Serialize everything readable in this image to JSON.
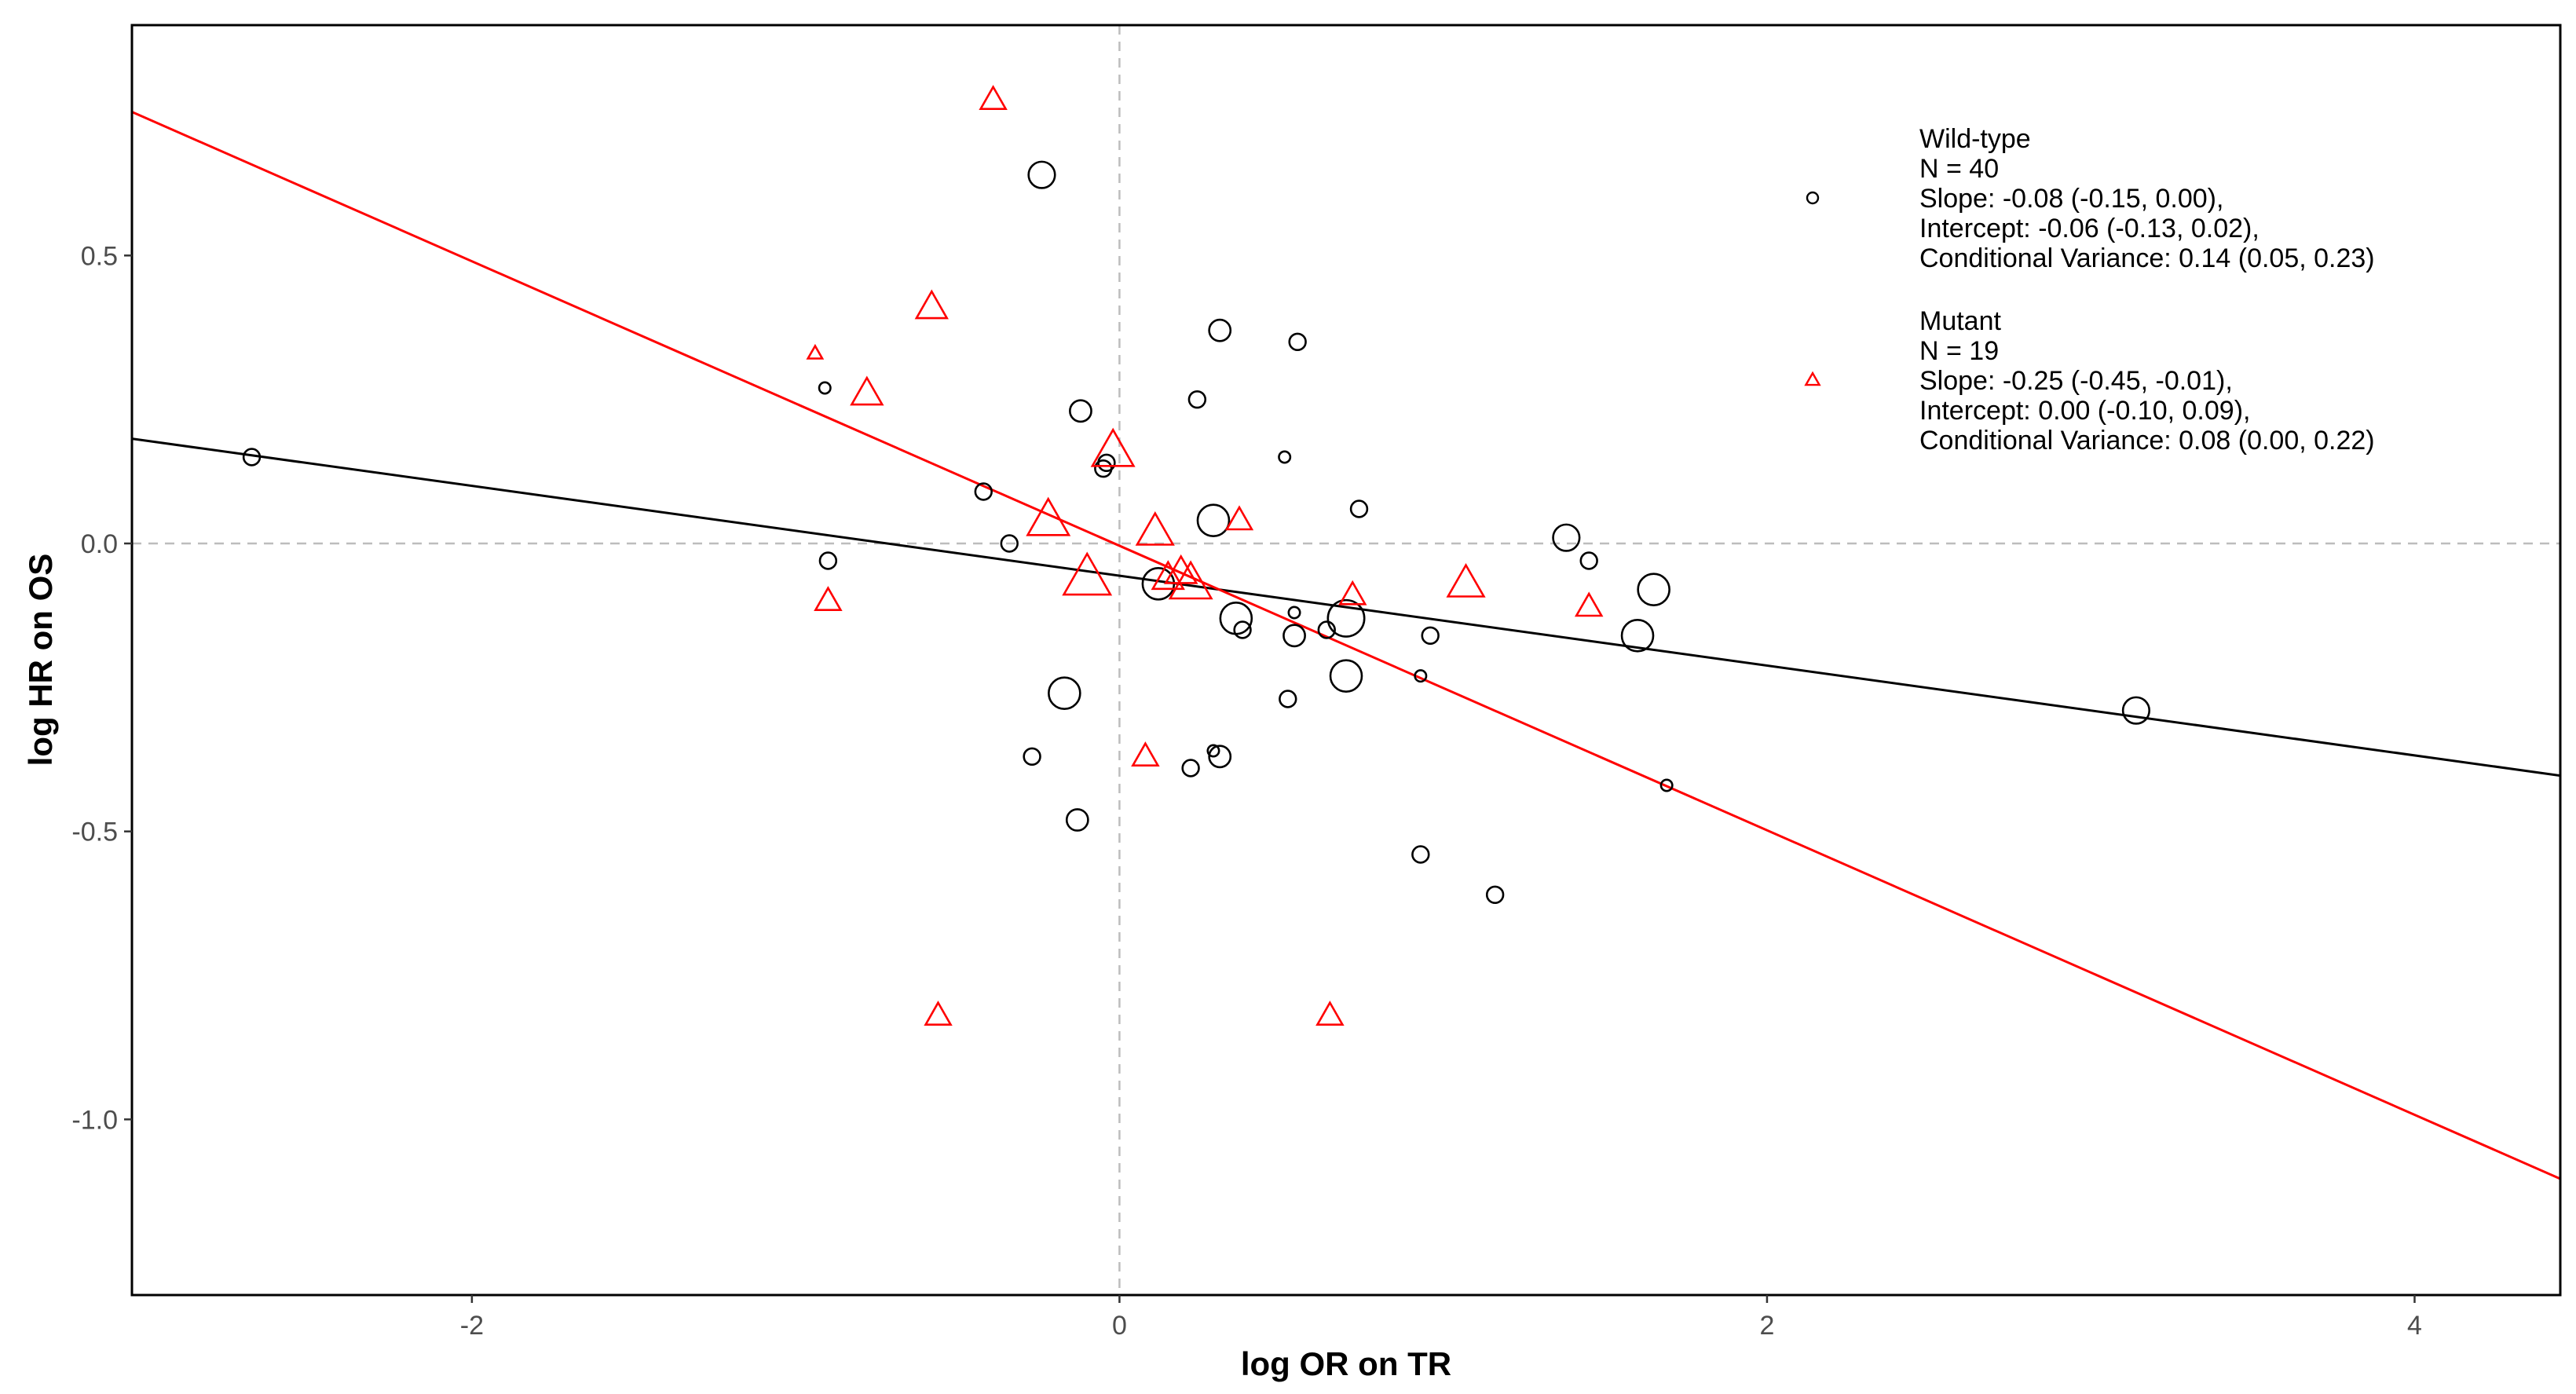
{
  "chart_data": {
    "type": "scatter",
    "title": "",
    "xlabel": "log OR on TR",
    "ylabel": "log HR on OS",
    "xlim": [
      -3.05,
      4.45
    ],
    "ylim": [
      -1.305,
      0.9
    ],
    "x_ticks": [
      -2,
      0,
      2,
      4
    ],
    "x_tick_labels": [
      "-2",
      "0",
      "2",
      "4"
    ],
    "y_ticks": [
      -1.0,
      -0.5,
      0.0,
      0.5
    ],
    "y_tick_labels": [
      "-1.0",
      "-0.5",
      "0.0",
      "0.5"
    ],
    "grid": false,
    "reference_lines": {
      "x": 0,
      "y": 0,
      "style": "dashed",
      "color": "#bdbdbd"
    },
    "legend_position": "top-right",
    "series": [
      {
        "name": "Wild-type",
        "marker": "circle",
        "color": "#000000",
        "legend_lines": [
          "Wild-type",
          "N = 40",
          "Slope: -0.08 (-0.15, 0.00),",
          "Intercept: -0.06 (-0.13, 0.02),",
          "Conditional Variance: 0.14 (0.05, 0.23)"
        ],
        "regression": {
          "slope": -0.078,
          "intercept": -0.056
        },
        "points": [
          {
            "x": -2.68,
            "y": 0.15,
            "size": 2
          },
          {
            "x": -0.24,
            "y": 0.64,
            "size": 4
          },
          {
            "x": -0.91,
            "y": 0.27,
            "size": 1
          },
          {
            "x": -0.42,
            "y": 0.09,
            "size": 2
          },
          {
            "x": -0.34,
            "y": 0.0,
            "size": 2
          },
          {
            "x": -0.9,
            "y": -0.03,
            "size": 2
          },
          {
            "x": -0.12,
            "y": 0.23,
            "size": 3
          },
          {
            "x": -0.05,
            "y": 0.13,
            "size": 2
          },
          {
            "x": -0.04,
            "y": 0.14,
            "size": 2
          },
          {
            "x": 0.31,
            "y": 0.37,
            "size": 3
          },
          {
            "x": 0.24,
            "y": 0.25,
            "size": 2
          },
          {
            "x": 0.55,
            "y": 0.35,
            "size": 2
          },
          {
            "x": 0.51,
            "y": 0.15,
            "size": 1
          },
          {
            "x": 0.74,
            "y": 0.06,
            "size": 2
          },
          {
            "x": 0.29,
            "y": 0.04,
            "size": 5
          },
          {
            "x": 0.12,
            "y": -0.07,
            "size": 5
          },
          {
            "x": 0.36,
            "y": -0.13,
            "size": 5
          },
          {
            "x": 0.38,
            "y": -0.15,
            "size": 2
          },
          {
            "x": 0.54,
            "y": -0.12,
            "size": 1
          },
          {
            "x": 0.54,
            "y": -0.16,
            "size": 3
          },
          {
            "x": 0.64,
            "y": -0.15,
            "size": 2
          },
          {
            "x": 0.7,
            "y": -0.13,
            "size": 6
          },
          {
            "x": 0.7,
            "y": -0.23,
            "size": 5
          },
          {
            "x": 0.96,
            "y": -0.16,
            "size": 2
          },
          {
            "x": 0.93,
            "y": -0.23,
            "size": 1
          },
          {
            "x": 0.52,
            "y": -0.27,
            "size": 2
          },
          {
            "x": -0.17,
            "y": -0.26,
            "size": 5
          },
          {
            "x": -0.27,
            "y": -0.37,
            "size": 2
          },
          {
            "x": 0.22,
            "y": -0.39,
            "size": 2
          },
          {
            "x": 0.29,
            "y": -0.36,
            "size": 1
          },
          {
            "x": 0.31,
            "y": -0.37,
            "size": 3
          },
          {
            "x": -0.13,
            "y": -0.48,
            "size": 3
          },
          {
            "x": 0.93,
            "y": -0.54,
            "size": 2
          },
          {
            "x": 1.16,
            "y": -0.61,
            "size": 2
          },
          {
            "x": 1.38,
            "y": 0.01,
            "size": 4
          },
          {
            "x": 1.45,
            "y": -0.03,
            "size": 2
          },
          {
            "x": 1.65,
            "y": -0.08,
            "size": 5
          },
          {
            "x": 1.6,
            "y": -0.16,
            "size": 5
          },
          {
            "x": 1.69,
            "y": -0.42,
            "size": 1
          },
          {
            "x": 3.14,
            "y": -0.29,
            "size": 4
          }
        ]
      },
      {
        "name": "Mutant",
        "marker": "triangle",
        "color": "#ff0000",
        "legend_lines": [
          "Mutant",
          "N = 19",
          "Slope: -0.25 (-0.45, -0.01),",
          "Intercept: 0.00 (-0.10, 0.09),",
          "Conditional Variance: 0.08 (0.00, 0.22)"
        ],
        "regression": {
          "slope": -0.247,
          "intercept": -0.004
        },
        "points": [
          {
            "x": -0.39,
            "y": 0.77,
            "size": 3
          },
          {
            "x": -0.58,
            "y": 0.41,
            "size": 4
          },
          {
            "x": -0.94,
            "y": 0.33,
            "size": 1
          },
          {
            "x": -0.78,
            "y": 0.26,
            "size": 4
          },
          {
            "x": -0.02,
            "y": 0.16,
            "size": 6
          },
          {
            "x": -0.22,
            "y": 0.04,
            "size": 6
          },
          {
            "x": 0.11,
            "y": 0.02,
            "size": 5
          },
          {
            "x": 0.37,
            "y": 0.04,
            "size": 3
          },
          {
            "x": -0.1,
            "y": -0.06,
            "size": 7
          },
          {
            "x": 0.19,
            "y": -0.05,
            "size": 4
          },
          {
            "x": 0.22,
            "y": -0.07,
            "size": 6
          },
          {
            "x": 0.72,
            "y": -0.09,
            "size": 3
          },
          {
            "x": 1.07,
            "y": -0.07,
            "size": 5
          },
          {
            "x": 1.45,
            "y": -0.11,
            "size": 3
          },
          {
            "x": -0.9,
            "y": -0.1,
            "size": 3
          },
          {
            "x": 0.08,
            "y": -0.37,
            "size": 3
          },
          {
            "x": -0.56,
            "y": -0.82,
            "size": 3
          },
          {
            "x": 0.65,
            "y": -0.82,
            "size": 3
          },
          {
            "x": 0.15,
            "y": -0.06,
            "size": 4
          }
        ]
      }
    ]
  }
}
